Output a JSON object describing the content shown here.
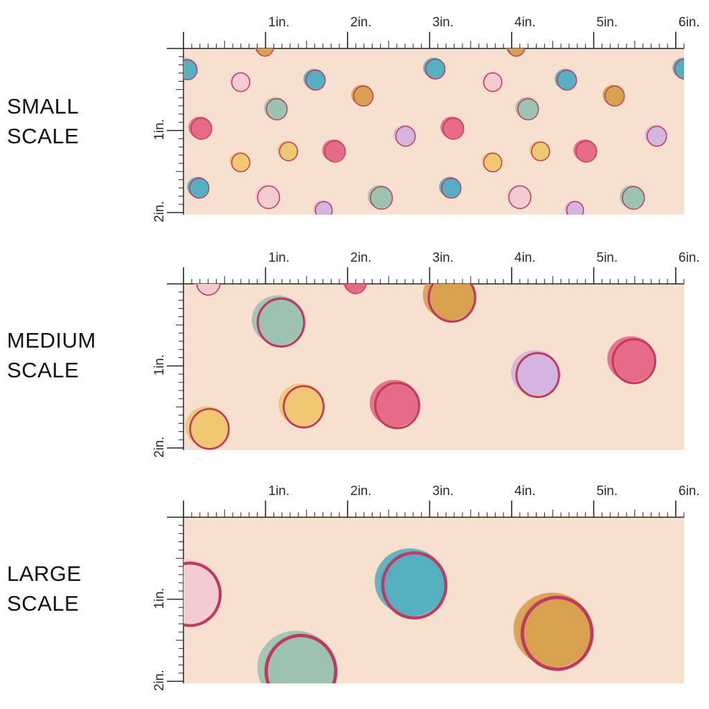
{
  "colors": {
    "fabric_bg": "#f6e1cf",
    "ruler_line": "#222222",
    "outline": "#c0395e",
    "teal": "#56afc0",
    "pink": "#e56b86",
    "light_pink": "#f3cbd0",
    "sage": "#9cc3b1",
    "mustard": "#d8a04f",
    "yellow": "#efc871",
    "lavender": "#d4b5df"
  },
  "ruler": {
    "top_labels": [
      "1in.",
      "2in.",
      "3in.",
      "4in.",
      "5in.",
      "6in."
    ],
    "left_labels": [
      "1in.",
      "2in."
    ]
  },
  "panels": [
    {
      "id": "small",
      "label_line1": "SMALL",
      "label_line2": "SCALE"
    },
    {
      "id": "medium",
      "label_line1": "MEDIUM",
      "label_line2": "SCALE"
    },
    {
      "id": "large",
      "label_line1": "LARGE",
      "label_line2": "SCALE"
    }
  ]
}
